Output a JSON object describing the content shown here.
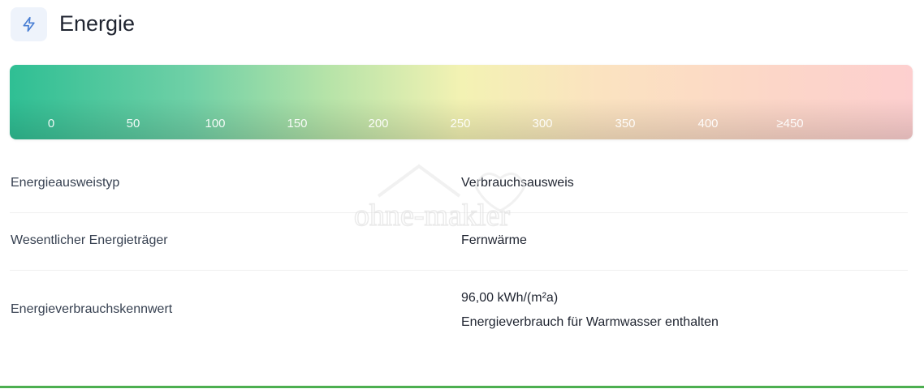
{
  "section": {
    "title": "Energie",
    "icon": "lightning-icon",
    "accent": "#4a7fd4"
  },
  "scale": {
    "ticks": [
      "0",
      "50",
      "100",
      "150",
      "200",
      "250",
      "300",
      "350",
      "400",
      "≥450"
    ]
  },
  "details": [
    {
      "label": "Energieausweistyp",
      "value": "Verbrauchsausweis"
    },
    {
      "label": "Wesentlicher Energieträger",
      "value": "Fernwärme"
    },
    {
      "label": "Energieverbrauchskennwert",
      "value": "96,00 kWh/(m²a)",
      "note": "Energieverbrauch für Warmwasser enthalten"
    }
  ],
  "watermark": "ohne-makler"
}
